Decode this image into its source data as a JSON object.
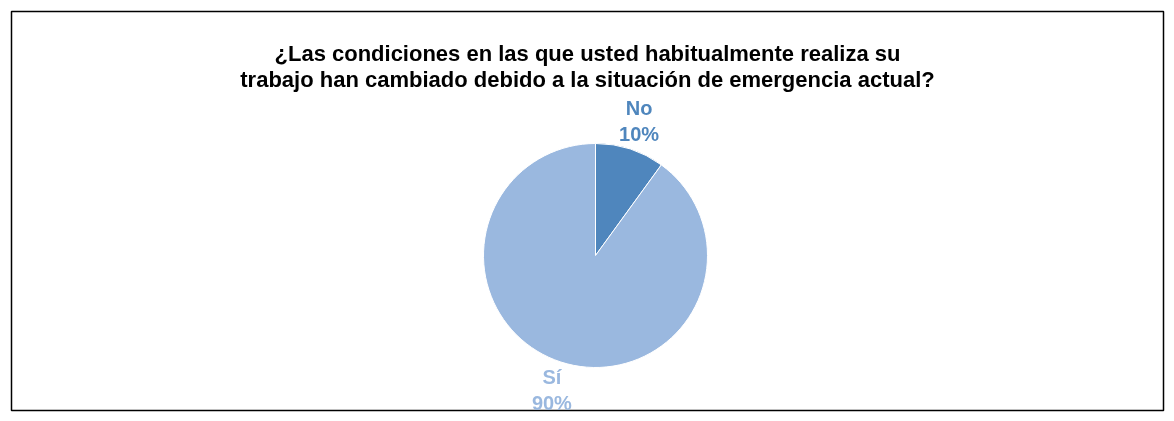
{
  "chart_data": {
    "type": "pie",
    "title": "¿Las condiciones en las que usted habitualmente realiza su\ntrabajo han cambiado debido a la situación de emergencia actual?",
    "categories": [
      "No",
      "Sí"
    ],
    "values": [
      10,
      90
    ],
    "colors": [
      "#4f86bd",
      "#9ab8df"
    ],
    "value_labels": [
      "10%",
      "90%"
    ]
  }
}
